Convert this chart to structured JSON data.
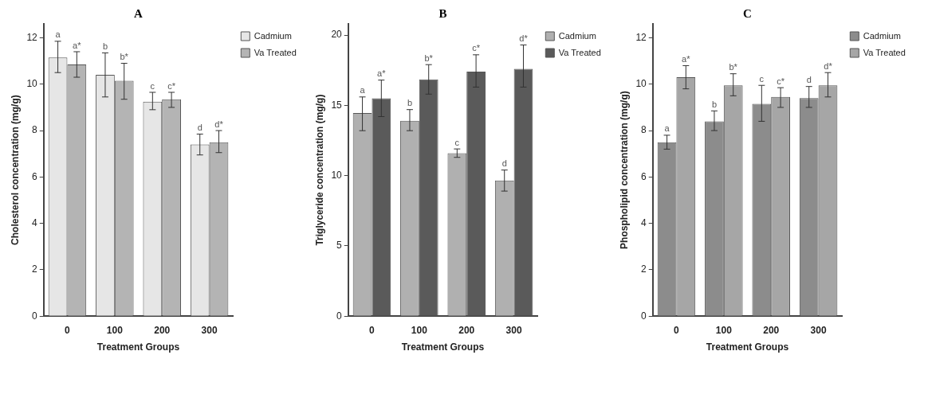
{
  "chart_data": [
    {
      "type": "bar",
      "categories": [
        "0",
        "100",
        "200",
        "300"
      ],
      "xlabel": "Treatment Groups",
      "ylabel": "Cholesterol concentration (mg/g)",
      "ylim": [
        0,
        12.6
      ],
      "yticks": [
        0,
        2,
        4,
        6,
        8,
        10,
        12
      ],
      "grid": false,
      "legend": "top right",
      "annotations": [
        "A"
      ],
      "series": [
        {
          "name": "Cadmium",
          "color": "#e6e6e6",
          "values": [
            11.15,
            10.4,
            9.25,
            7.4
          ],
          "errors": [
            [
              10.5,
              11.85
            ],
            [
              9.45,
              11.35
            ],
            [
              8.9,
              9.65
            ],
            [
              6.95,
              7.85
            ]
          ],
          "value_labels": [
            "a",
            "b",
            "c",
            "d"
          ]
        },
        {
          "name": "Va Treated",
          "color": "#b4b4b4",
          "values": [
            10.85,
            10.15,
            9.35,
            7.5
          ],
          "errors": [
            [
              10.3,
              11.4
            ],
            [
              9.35,
              10.9
            ],
            [
              9.0,
              9.65
            ],
            [
              7.05,
              8.0
            ]
          ],
          "value_labels": [
            "a*",
            "b*",
            "c*",
            "d*"
          ]
        }
      ]
    },
    {
      "type": "bar",
      "categories": [
        "0",
        "100",
        "200",
        "300"
      ],
      "xlabel": "Treatment Groups",
      "ylabel": "Triglyceride concentration (mg/g)",
      "ylim": [
        0,
        20.8
      ],
      "yticks": [
        0,
        5,
        10,
        15,
        20
      ],
      "grid": false,
      "legend": "top right",
      "annotations": [
        "B"
      ],
      "series": [
        {
          "name": "Cadmium",
          "color": "#b0b0b0",
          "values": [
            14.45,
            13.9,
            11.6,
            9.65
          ],
          "errors": [
            [
              13.2,
              15.6
            ],
            [
              13.2,
              14.7
            ],
            [
              11.3,
              11.9
            ],
            [
              8.9,
              10.4
            ]
          ],
          "value_labels": [
            "a",
            "b",
            "c",
            "d"
          ]
        },
        {
          "name": "Va Treated",
          "color": "#5a5a5a",
          "values": [
            15.5,
            16.85,
            17.4,
            17.6
          ],
          "errors": [
            [
              14.2,
              16.8
            ],
            [
              15.8,
              17.9
            ],
            [
              16.3,
              18.6
            ],
            [
              16.3,
              19.3
            ]
          ],
          "value_labels": [
            "a*",
            "b*",
            "c*",
            "d*"
          ]
        }
      ]
    },
    {
      "type": "bar",
      "categories": [
        "0",
        "100",
        "200",
        "300"
      ],
      "xlabel": "Treatment Groups",
      "ylabel": "Phospholipid concentration (mg/g)",
      "ylim": [
        0,
        12.6
      ],
      "yticks": [
        0,
        2,
        4,
        6,
        8,
        10,
        12
      ],
      "grid": false,
      "legend": "top right",
      "annotations": [
        "C"
      ],
      "series": [
        {
          "name": "Cadmium",
          "color": "#8c8c8c",
          "values": [
            7.5,
            8.4,
            9.15,
            9.4
          ],
          "errors": [
            [
              7.2,
              7.8
            ],
            [
              8.0,
              8.85
            ],
            [
              8.4,
              9.95
            ],
            [
              9.0,
              9.9
            ]
          ],
          "value_labels": [
            "a",
            "b",
            "c",
            "d"
          ]
        },
        {
          "name": "Va Treated",
          "color": "#a6a6a6",
          "values": [
            10.3,
            9.95,
            9.45,
            9.95
          ],
          "errors": [
            [
              9.8,
              10.8
            ],
            [
              9.5,
              10.45
            ],
            [
              9.0,
              9.85
            ],
            [
              9.45,
              10.5
            ]
          ],
          "value_labels": [
            "a*",
            "b*",
            "c*",
            "d*"
          ]
        }
      ]
    }
  ]
}
